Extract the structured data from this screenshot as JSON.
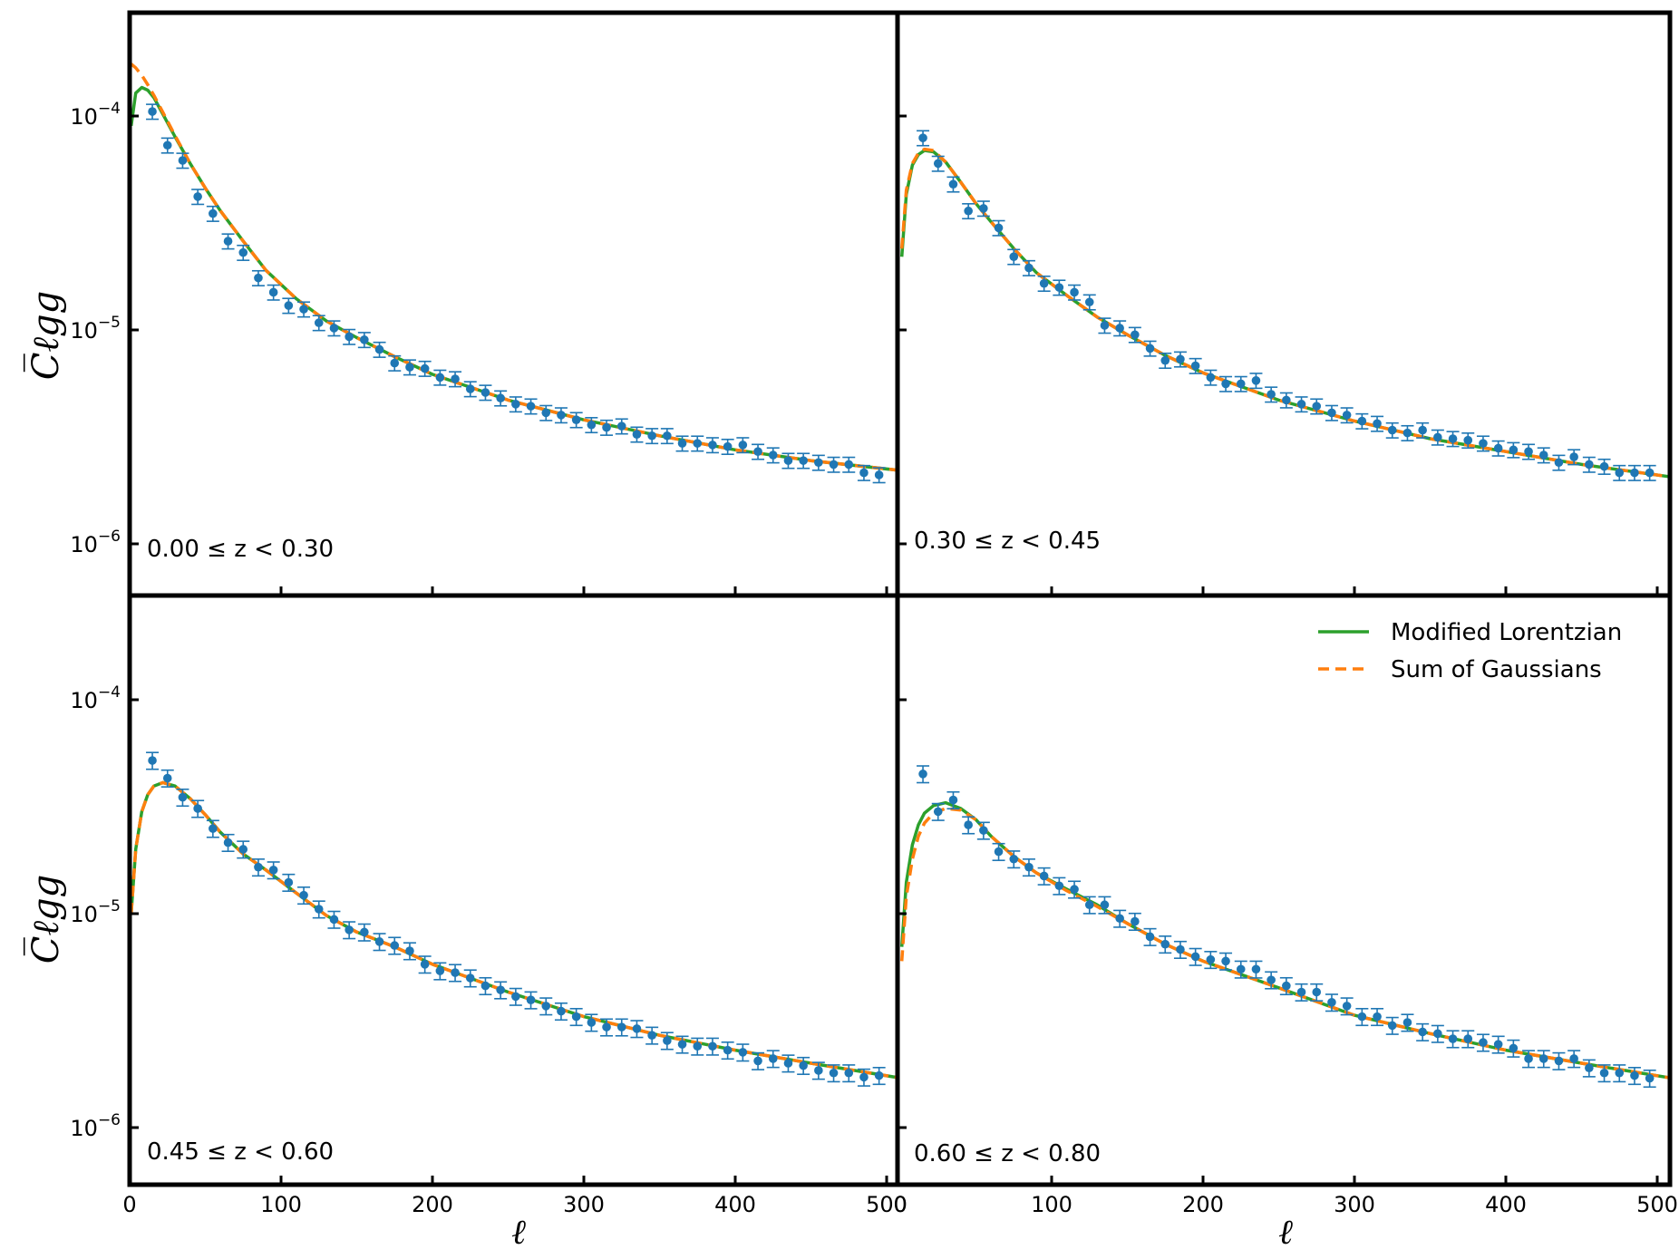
{
  "axes": {
    "ylabel": "C̅ℓgg",
    "xlabel": "ℓ",
    "xticks": [
      0,
      100,
      200,
      300,
      400,
      500
    ],
    "xtick_labels": [
      "0",
      "100",
      "200",
      "300",
      "400",
      "500"
    ],
    "ytick_labels": [
      "10−6",
      "10−5",
      "10−4"
    ]
  },
  "legend": {
    "items": [
      {
        "label": "Modified Lorentzian",
        "color": "#2ca02c",
        "style": "solid"
      },
      {
        "label": "Sum of Gaussians",
        "color": "#ff7f0e",
        "style": "dashed"
      }
    ],
    "location": "upper right of bottom-right panel"
  },
  "colors": {
    "data": "#1f77b4",
    "lorentzian": "#2ca02c",
    "gaussians": "#ff7f0e"
  },
  "chart_data": [
    {
      "type": "line",
      "panel": "top-left",
      "bin_label": "0.00  ≤ z <  0.30",
      "xlim": [
        0,
        510
      ],
      "ylim": [
        6e-07,
        0.0003
      ],
      "yscale": "log",
      "series": [
        {
          "name": "Modified Lorentzian",
          "kind": "model",
          "x": [
            1,
            4,
            8,
            12,
            16,
            22,
            30,
            40,
            50,
            60,
            75,
            90,
            110,
            130,
            150,
            175,
            200,
            250,
            300,
            350,
            400,
            450,
            510
          ],
          "y": [
            9e-05,
            0.000128,
            0.000136,
            0.000132,
            0.000122,
            0.000102,
            8e-05,
            6e-05,
            4.6e-05,
            3.6e-05,
            2.6e-05,
            1.9e-05,
            1.4e-05,
            1.1e-05,
            9.2e-06,
            7.5e-06,
            6.2e-06,
            4.7e-06,
            3.8e-06,
            3.2e-06,
            2.75e-06,
            2.45e-06,
            2.2e-06
          ]
        },
        {
          "name": "Sum of Gaussians",
          "kind": "model",
          "x": [
            1,
            4,
            8,
            12,
            16,
            22,
            30,
            40,
            50,
            60,
            75,
            90,
            110,
            130,
            150,
            175,
            200,
            250,
            300,
            350,
            400,
            450,
            510
          ],
          "y": [
            0.000175,
            0.000168,
            0.000155,
            0.00014,
            0.000125,
            0.000104,
            8.1e-05,
            6e-05,
            4.6e-05,
            3.6e-05,
            2.6e-05,
            1.9e-05,
            1.4e-05,
            1.1e-05,
            9.2e-06,
            7.5e-06,
            6.2e-06,
            4.7e-06,
            3.8e-06,
            3.2e-06,
            2.75e-06,
            2.45e-06,
            2.2e-06
          ]
        },
        {
          "name": "data",
          "kind": "points",
          "x": [
            15,
            25,
            35,
            45,
            55,
            65,
            75,
            85,
            95,
            105,
            115,
            125,
            135,
            145,
            155,
            165,
            175,
            185,
            195,
            205,
            215,
            225,
            235,
            245,
            255,
            265,
            275,
            285,
            295,
            305,
            315,
            325,
            335,
            345,
            355,
            365,
            375,
            385,
            395,
            405,
            415,
            425,
            435,
            445,
            455,
            465,
            475,
            485,
            495
          ],
          "y": [
            0.000105,
            7.3e-05,
            6.2e-05,
            4.2e-05,
            3.5e-05,
            2.6e-05,
            2.3e-05,
            1.75e-05,
            1.5e-05,
            1.3e-05,
            1.25e-05,
            1.08e-05,
            1.02e-05,
            9.3e-06,
            9e-06,
            8.1e-06,
            7e-06,
            6.7e-06,
            6.6e-06,
            6e-06,
            5.9e-06,
            5.3e-06,
            5.1e-06,
            4.8e-06,
            4.5e-06,
            4.4e-06,
            4.1e-06,
            4e-06,
            3.8e-06,
            3.6e-06,
            3.5e-06,
            3.55e-06,
            3.25e-06,
            3.2e-06,
            3.2e-06,
            2.95e-06,
            2.95e-06,
            2.9e-06,
            2.85e-06,
            2.9e-06,
            2.7e-06,
            2.6e-06,
            2.45e-06,
            2.45e-06,
            2.4e-06,
            2.35e-06,
            2.35e-06,
            2.15e-06,
            2.1e-06
          ],
          "err_frac": 0.08
        }
      ]
    },
    {
      "type": "line",
      "panel": "top-right",
      "bin_label": "0.30  ≤ z <  0.45",
      "xlim": [
        0,
        510
      ],
      "ylim": [
        6e-07,
        0.0003
      ],
      "yscale": "log",
      "series": [
        {
          "name": "Modified Lorentzian",
          "kind": "model",
          "x": [
            1,
            4,
            8,
            12,
            16,
            22,
            30,
            40,
            50,
            60,
            75,
            90,
            110,
            130,
            150,
            175,
            200,
            250,
            300,
            350,
            400,
            450,
            510
          ],
          "y": [
            2.2e-05,
            4.3e-05,
            5.9e-05,
            6.6e-05,
            6.9e-05,
            6.8e-05,
            6.1e-05,
            4.9e-05,
            3.9e-05,
            3.2e-05,
            2.4e-05,
            1.85e-05,
            1.45e-05,
            1.15e-05,
            9.5e-06,
            7.6e-06,
            6.3e-06,
            4.7e-06,
            3.75e-06,
            3.1e-06,
            2.7e-06,
            2.35e-06,
            2.05e-06
          ]
        },
        {
          "name": "Sum of Gaussians",
          "kind": "model",
          "x": [
            1,
            4,
            8,
            12,
            16,
            22,
            30,
            40,
            50,
            60,
            75,
            90,
            110,
            130,
            150,
            175,
            200,
            250,
            300,
            350,
            400,
            450,
            510
          ],
          "y": [
            2.4e-05,
            4.5e-05,
            6e-05,
            6.7e-05,
            7e-05,
            6.9e-05,
            6.1e-05,
            4.9e-05,
            3.9e-05,
            3.2e-05,
            2.4e-05,
            1.85e-05,
            1.45e-05,
            1.15e-05,
            9.5e-06,
            7.6e-06,
            6.3e-06,
            4.7e-06,
            3.75e-06,
            3.1e-06,
            2.7e-06,
            2.35e-06,
            2.05e-06
          ]
        },
        {
          "name": "data",
          "kind": "points",
          "x": [
            15,
            25,
            35,
            45,
            55,
            65,
            75,
            85,
            95,
            105,
            115,
            125,
            135,
            145,
            155,
            165,
            175,
            185,
            195,
            205,
            215,
            225,
            235,
            245,
            255,
            265,
            275,
            285,
            295,
            305,
            315,
            325,
            335,
            345,
            355,
            365,
            375,
            385,
            395,
            405,
            415,
            425,
            435,
            445,
            455,
            465,
            475,
            485,
            495
          ],
          "y": [
            7.9e-05,
            6e-05,
            4.8e-05,
            3.6e-05,
            3.7e-05,
            3e-05,
            2.2e-05,
            1.95e-05,
            1.65e-05,
            1.58e-05,
            1.5e-05,
            1.35e-05,
            1.05e-05,
            1.02e-05,
            9.5e-06,
            8.2e-06,
            7.2e-06,
            7.3e-06,
            6.8e-06,
            6e-06,
            5.6e-06,
            5.6e-06,
            5.8e-06,
            5e-06,
            4.7e-06,
            4.5e-06,
            4.4e-06,
            4.1e-06,
            4e-06,
            3.75e-06,
            3.65e-06,
            3.4e-06,
            3.3e-06,
            3.4e-06,
            3.15e-06,
            3.1e-06,
            3.05e-06,
            2.95e-06,
            2.8e-06,
            2.75e-06,
            2.7e-06,
            2.6e-06,
            2.4e-06,
            2.55e-06,
            2.35e-06,
            2.3e-06,
            2.15e-06,
            2.15e-06,
            2.15e-06
          ],
          "err_frac": 0.08
        }
      ]
    },
    {
      "type": "line",
      "panel": "bottom-left",
      "bin_label": "0.45  ≤ z <  0.60",
      "xlim": [
        0,
        510
      ],
      "ylim": [
        6e-07,
        0.0003
      ],
      "yscale": "log",
      "series": [
        {
          "name": "Modified Lorentzian",
          "kind": "model",
          "x": [
            1,
            4,
            8,
            12,
            16,
            22,
            30,
            40,
            50,
            60,
            75,
            90,
            110,
            130,
            150,
            175,
            200,
            250,
            300,
            350,
            400,
            450,
            510
          ],
          "y": [
            1e-05,
            2e-05,
            3e-05,
            3.6e-05,
            3.95e-05,
            4.1e-05,
            3.95e-05,
            3.45e-05,
            2.9e-05,
            2.4e-05,
            1.9e-05,
            1.6e-05,
            1.25e-05,
            9.8e-06,
            8.2e-06,
            7e-06,
            5.8e-06,
            4.3e-06,
            3.3e-06,
            2.7e-06,
            2.3e-06,
            2e-06,
            1.7e-06
          ]
        },
        {
          "name": "Sum of Gaussians",
          "kind": "model",
          "x": [
            1,
            4,
            8,
            12,
            16,
            22,
            30,
            40,
            50,
            60,
            75,
            90,
            110,
            130,
            150,
            175,
            200,
            250,
            300,
            350,
            400,
            450,
            510
          ],
          "y": [
            1e-05,
            2e-05,
            3e-05,
            3.6e-05,
            3.95e-05,
            4.1e-05,
            3.95e-05,
            3.45e-05,
            2.9e-05,
            2.4e-05,
            1.9e-05,
            1.6e-05,
            1.25e-05,
            9.8e-06,
            8.2e-06,
            7e-06,
            5.8e-06,
            4.3e-06,
            3.3e-06,
            2.7e-06,
            2.3e-06,
            2e-06,
            1.7e-06
          ]
        },
        {
          "name": "data",
          "kind": "points",
          "x": [
            15,
            25,
            35,
            45,
            55,
            65,
            75,
            85,
            95,
            105,
            115,
            125,
            135,
            145,
            155,
            165,
            175,
            185,
            195,
            205,
            215,
            225,
            235,
            245,
            255,
            265,
            275,
            285,
            295,
            305,
            315,
            325,
            335,
            345,
            355,
            365,
            375,
            385,
            395,
            405,
            415,
            425,
            435,
            445,
            455,
            465,
            475,
            485,
            495
          ],
          "y": [
            5.2e-05,
            4.3e-05,
            3.5e-05,
            3.1e-05,
            2.5e-05,
            2.15e-05,
            2e-05,
            1.65e-05,
            1.6e-05,
            1.4e-05,
            1.22e-05,
            1.05e-05,
            9.4e-06,
            8.4e-06,
            8.2e-06,
            7.4e-06,
            7.1e-06,
            6.7e-06,
            5.8e-06,
            5.4e-06,
            5.3e-06,
            5e-06,
            4.6e-06,
            4.4e-06,
            4.1e-06,
            3.95e-06,
            3.7e-06,
            3.5e-06,
            3.3e-06,
            3.1e-06,
            2.95e-06,
            2.95e-06,
            2.9e-06,
            2.7e-06,
            2.55e-06,
            2.45e-06,
            2.4e-06,
            2.4e-06,
            2.3e-06,
            2.25e-06,
            2.05e-06,
            2.1e-06,
            2e-06,
            1.95e-06,
            1.85e-06,
            1.8e-06,
            1.8e-06,
            1.72e-06,
            1.75e-06
          ],
          "err_frac": 0.09
        }
      ]
    },
    {
      "type": "line",
      "panel": "bottom-right",
      "bin_label": "0.60  ≤ z <  0.80",
      "xlim": [
        0,
        510
      ],
      "ylim": [
        6e-07,
        0.0003
      ],
      "yscale": "log",
      "series": [
        {
          "name": "Modified Lorentzian",
          "kind": "model",
          "x": [
            1,
            4,
            8,
            12,
            16,
            22,
            30,
            40,
            50,
            60,
            75,
            90,
            110,
            130,
            150,
            175,
            200,
            250,
            300,
            350,
            400,
            450,
            510
          ],
          "y": [
            7e-06,
            1.4e-05,
            2.1e-05,
            2.6e-05,
            2.95e-05,
            3.2e-05,
            3.3e-05,
            3.1e-05,
            2.75e-05,
            2.3e-05,
            1.85e-05,
            1.55e-05,
            1.3e-05,
            1.1e-05,
            9e-06,
            7.2e-06,
            6e-06,
            4.5e-06,
            3.35e-06,
            2.75e-06,
            2.3e-06,
            2e-06,
            1.7e-06
          ]
        },
        {
          "name": "Sum of Gaussians",
          "kind": "model",
          "x": [
            1,
            4,
            8,
            12,
            16,
            22,
            30,
            40,
            50,
            60,
            75,
            90,
            110,
            130,
            150,
            175,
            200,
            250,
            300,
            350,
            400,
            450,
            510
          ],
          "y": [
            6e-06,
            1.2e-05,
            1.8e-05,
            2.3e-05,
            2.65e-05,
            2.95e-05,
            3.1e-05,
            3.05e-05,
            2.75e-05,
            2.3e-05,
            1.85e-05,
            1.55e-05,
            1.28e-05,
            1.08e-05,
            9e-06,
            7.2e-06,
            6e-06,
            4.5e-06,
            3.35e-06,
            2.75e-06,
            2.3e-06,
            2e-06,
            1.7e-06
          ]
        },
        {
          "name": "data",
          "kind": "points",
          "x": [
            15,
            25,
            35,
            45,
            55,
            65,
            75,
            85,
            95,
            105,
            115,
            125,
            135,
            145,
            155,
            165,
            175,
            185,
            195,
            205,
            215,
            225,
            235,
            245,
            255,
            265,
            275,
            285,
            295,
            305,
            315,
            325,
            335,
            345,
            355,
            365,
            375,
            385,
            395,
            405,
            415,
            425,
            435,
            445,
            455,
            465,
            475,
            485,
            495
          ],
          "y": [
            4.5e-05,
            3e-05,
            3.4e-05,
            2.6e-05,
            2.45e-05,
            1.95e-05,
            1.8e-05,
            1.65e-05,
            1.5e-05,
            1.35e-05,
            1.3e-05,
            1.1e-05,
            1.1e-05,
            9.5e-06,
            9.2e-06,
            7.8e-06,
            7.2e-06,
            6.8e-06,
            6.3e-06,
            6.1e-06,
            6e-06,
            5.5e-06,
            5.5e-06,
            4.9e-06,
            4.6e-06,
            4.3e-06,
            4.3e-06,
            3.85e-06,
            3.7e-06,
            3.3e-06,
            3.3e-06,
            3e-06,
            3.1e-06,
            2.8e-06,
            2.75e-06,
            2.6e-06,
            2.6e-06,
            2.5e-06,
            2.45e-06,
            2.35e-06,
            2.1e-06,
            2.1e-06,
            2.05e-06,
            2.1e-06,
            1.9e-06,
            1.8e-06,
            1.8e-06,
            1.75e-06,
            1.7e-06
          ],
          "err_frac": 0.09
        }
      ]
    }
  ]
}
